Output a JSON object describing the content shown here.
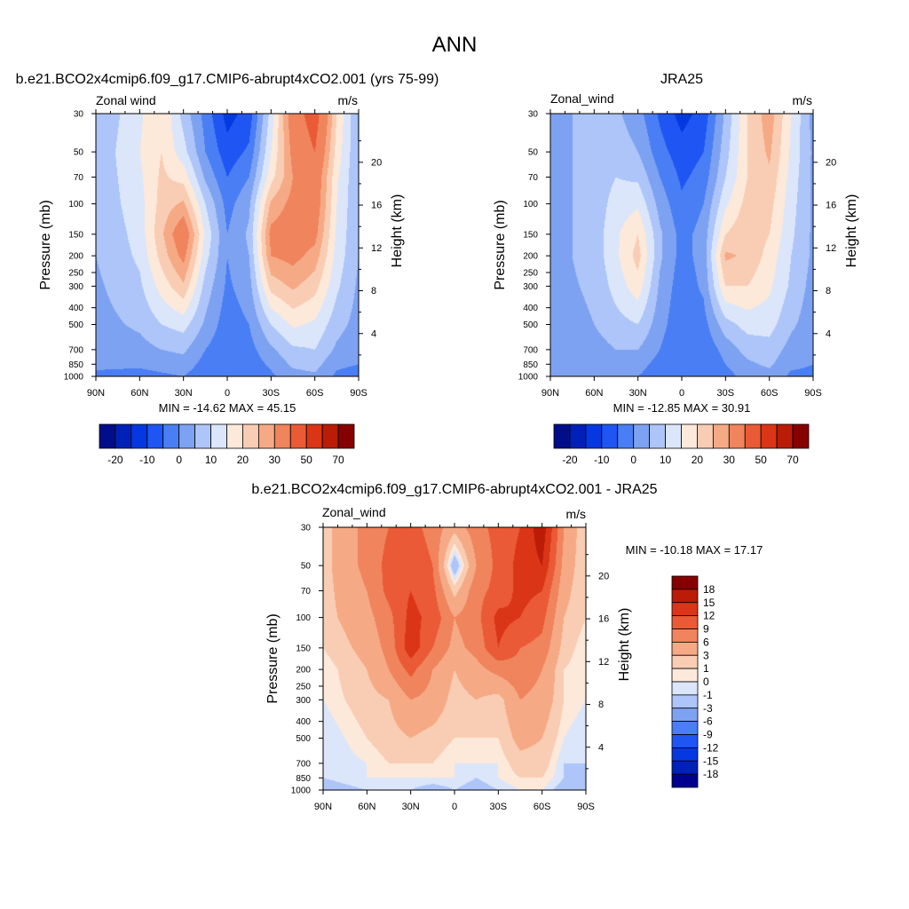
{
  "figure": {
    "title": "ANN"
  },
  "chart_data": [
    {
      "type": "heatmap",
      "panel": "model",
      "title": "b.e21.BCO2x4cmip6.f09_g17.CMIP6-abrupt4xCO2.001 (yrs 75-99)",
      "variable_label": "Zonal wind",
      "units_label": "m/s",
      "ylabel": "Pressure (mb)",
      "ylabel_right": "Height (km)",
      "x_ticks": [
        "90N",
        "60N",
        "30N",
        "0",
        "30S",
        "60S",
        "90S"
      ],
      "y_ticks": [
        "30",
        "50",
        "70",
        "100",
        "150",
        "200",
        "250",
        "300",
        "400",
        "500",
        "700",
        "850",
        "1000"
      ],
      "height_ticks": [
        "4",
        "8",
        "12",
        "16",
        "20"
      ],
      "stats": "MIN = -14.62  MAX =  45.15",
      "colorbar_labels": [
        "-20",
        "-10",
        "0",
        "10",
        "20",
        "30",
        "50",
        "70"
      ],
      "field": {
        "lat": [
          90,
          60,
          45,
          30,
          15,
          0,
          -15,
          -30,
          -45,
          -60,
          -75,
          -90
        ],
        "pressure_levels": [
          30,
          50,
          70,
          100,
          150,
          200,
          300,
          500,
          700,
          850,
          1000
        ],
        "values": [
          [
            5,
            14,
            20,
            8,
            -2,
            -12,
            -8,
            12,
            35,
            45,
            20,
            4
          ],
          [
            6,
            15,
            20,
            12,
            0,
            -8,
            -4,
            15,
            32,
            40,
            18,
            5
          ],
          [
            6,
            14,
            21,
            18,
            4,
            -5,
            0,
            18,
            30,
            36,
            16,
            5
          ],
          [
            6,
            13,
            22,
            26,
            10,
            -2,
            4,
            26,
            32,
            35,
            15,
            5
          ],
          [
            5,
            12,
            24,
            36,
            14,
            0,
            6,
            32,
            34,
            32,
            14,
            5
          ],
          [
            5,
            11,
            22,
            32,
            12,
            0,
            5,
            30,
            32,
            28,
            13,
            5
          ],
          [
            4,
            9,
            17,
            24,
            8,
            -1,
            3,
            22,
            26,
            22,
            11,
            4
          ],
          [
            3,
            6,
            10,
            12,
            4,
            -3,
            0,
            10,
            16,
            14,
            7,
            3
          ],
          [
            2,
            3,
            5,
            6,
            0,
            -4,
            -2,
            4,
            9,
            10,
            4,
            1
          ],
          [
            1,
            1,
            2,
            3,
            -2,
            -4,
            -3,
            1,
            6,
            7,
            1,
            0
          ],
          [
            -1,
            -2,
            -1,
            0,
            -4,
            -4,
            -4,
            -1,
            3,
            4,
            -1,
            -2
          ]
        ]
      }
    },
    {
      "type": "heatmap",
      "panel": "obs",
      "title": "JRA25",
      "variable_label": "Zonal_wind",
      "units_label": "m/s",
      "ylabel": "Pressure (mb)",
      "ylabel_right": "Height (km)",
      "x_ticks": [
        "90N",
        "60N",
        "30N",
        "0",
        "30S",
        "60S",
        "90S"
      ],
      "y_ticks": [
        "30",
        "50",
        "70",
        "100",
        "150",
        "200",
        "250",
        "300",
        "400",
        "500",
        "700",
        "850",
        "1000"
      ],
      "height_ticks": [
        "4",
        "8",
        "12",
        "16",
        "20"
      ],
      "stats": "MIN = -12.85  MAX =  30.91",
      "colorbar_labels": [
        "-20",
        "-10",
        "0",
        "10",
        "20",
        "30",
        "50",
        "70"
      ],
      "field": {
        "lat": [
          90,
          60,
          45,
          30,
          15,
          0,
          -15,
          -30,
          -45,
          -60,
          -75,
          -90
        ],
        "pressure_levels": [
          30,
          50,
          70,
          100,
          150,
          200,
          300,
          500,
          700,
          850,
          1000
        ],
        "values": [
          [
            3,
            7,
            6,
            2,
            -6,
            -12,
            -8,
            6,
            20,
            28,
            15,
            3
          ],
          [
            3,
            7,
            8,
            5,
            -3,
            -8,
            -5,
            8,
            20,
            26,
            14,
            4
          ],
          [
            3,
            7,
            10,
            9,
            0,
            -6,
            -3,
            10,
            20,
            24,
            13,
            4
          ],
          [
            3,
            7,
            12,
            14,
            3,
            -4,
            0,
            14,
            22,
            22,
            12,
            4
          ],
          [
            3,
            7,
            14,
            20,
            6,
            -2,
            2,
            20,
            24,
            20,
            11,
            4
          ],
          [
            3,
            7,
            14,
            22,
            6,
            -2,
            2,
            26,
            24,
            18,
            10,
            4
          ],
          [
            3,
            6,
            12,
            18,
            4,
            -3,
            1,
            20,
            20,
            16,
            9,
            3
          ],
          [
            2,
            5,
            8,
            10,
            2,
            -4,
            -2,
            8,
            12,
            12,
            6,
            2
          ],
          [
            2,
            3,
            5,
            5,
            0,
            -5,
            -4,
            2,
            7,
            8,
            3,
            1
          ],
          [
            1,
            2,
            2,
            2,
            -2,
            -5,
            -5,
            0,
            4,
            6,
            1,
            0
          ],
          [
            0,
            0,
            0,
            0,
            -3,
            -5,
            -5,
            -2,
            2,
            3,
            -1,
            -1
          ]
        ]
      }
    },
    {
      "type": "heatmap",
      "panel": "difference",
      "title": "b.e21.BCO2x4cmip6.f09_g17.CMIP6-abrupt4xCO2.001 - JRA25",
      "variable_label": "Zonal_wind",
      "units_label": "m/s",
      "ylabel": "Pressure (mb)",
      "ylabel_right": "Height (km)",
      "x_ticks": [
        "90N",
        "60N",
        "30N",
        "0",
        "30S",
        "60S",
        "90S"
      ],
      "y_ticks": [
        "30",
        "50",
        "70",
        "100",
        "150",
        "200",
        "250",
        "300",
        "400",
        "500",
        "700",
        "850",
        "1000"
      ],
      "height_ticks": [
        "4",
        "8",
        "12",
        "16",
        "20"
      ],
      "stats": "MIN = -10.18  MAX =  17.17",
      "colorbar_labels": [
        "18",
        "15",
        "12",
        "9",
        "6",
        "3",
        "1",
        "0",
        "-1",
        "-3",
        "-6",
        "-9",
        "-12",
        "-15",
        "-18"
      ],
      "field": {
        "lat": [
          90,
          60,
          45,
          30,
          15,
          0,
          -15,
          -30,
          -45,
          -60,
          -75,
          -90
        ],
        "pressure_levels": [
          30,
          50,
          70,
          100,
          150,
          200,
          300,
          500,
          700,
          850,
          1000
        ],
        "values": [
          [
            2,
            7,
            9,
            10,
            8,
            4,
            8,
            10,
            12,
            17,
            6,
            1
          ],
          [
            2,
            7,
            10,
            11,
            9,
            -3,
            6,
            10,
            13,
            15,
            5,
            1
          ],
          [
            2,
            6,
            10,
            12,
            10,
            2,
            8,
            10,
            13,
            12,
            4,
            1
          ],
          [
            2,
            5,
            8,
            13,
            11,
            6,
            8,
            13,
            12,
            10,
            3,
            1
          ],
          [
            1,
            4,
            7,
            14,
            9,
            5,
            7,
            12,
            9,
            8,
            2,
            0
          ],
          [
            0,
            3,
            6,
            10,
            6,
            3,
            5,
            7,
            8,
            6,
            1,
            0
          ],
          [
            0,
            2,
            3,
            6,
            5,
            2,
            3,
            2,
            6,
            5,
            1,
            0
          ],
          [
            -1,
            1,
            2,
            3,
            2,
            1,
            1,
            1,
            4,
            3,
            0,
            -1
          ],
          [
            -1,
            0,
            1,
            1,
            1,
            0,
            0,
            0,
            2,
            2,
            -1,
            -1
          ],
          [
            -1,
            0,
            0,
            0,
            0,
            0,
            -1,
            0,
            1,
            1,
            -1,
            -2
          ],
          [
            -2,
            -1,
            -1,
            -1,
            -2,
            -1,
            -2,
            -1,
            0,
            0,
            -2,
            -3
          ]
        ]
      }
    }
  ],
  "colormaps": {
    "abs_levels": [
      -20,
      -15,
      -10,
      -5,
      0,
      5,
      10,
      15,
      20,
      25,
      30,
      40,
      50,
      60,
      70
    ],
    "abs_colors": [
      "#000e8a",
      "#0021b8",
      "#0538e0",
      "#1f55f2",
      "#4a7ef4",
      "#7ea2f2",
      "#adc5f8",
      "#dbe6fb",
      "#fde9da",
      "#f9cdb3",
      "#f5aa85",
      "#f0845c",
      "#ea5a36",
      "#db3517",
      "#ba1c07",
      "#870000"
    ],
    "diff_levels": [
      -18,
      -15,
      -12,
      -9,
      -6,
      -3,
      -1,
      0,
      1,
      3,
      6,
      9,
      12,
      15,
      18
    ],
    "diff_colors": [
      "#00008f",
      "#0021b8",
      "#0538e0",
      "#1f55f2",
      "#4a7ef4",
      "#7ea2f2",
      "#adc5f8",
      "#dbe6fb",
      "#fde9da",
      "#f9cdb3",
      "#f5aa85",
      "#f0845c",
      "#ea5a36",
      "#db3517",
      "#ba1c07",
      "#870000"
    ]
  }
}
